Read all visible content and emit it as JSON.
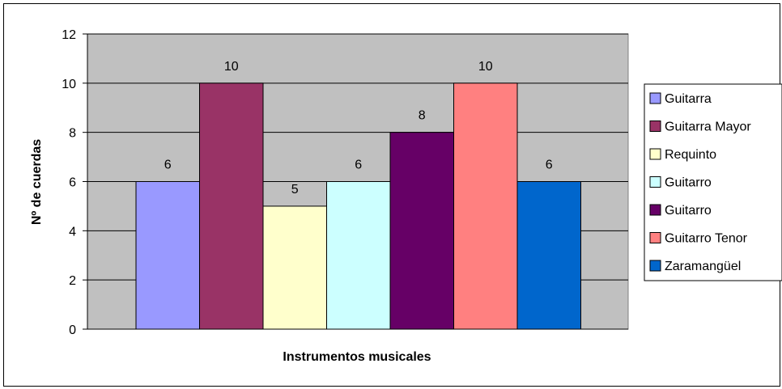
{
  "chart_data": {
    "type": "bar",
    "categories": [
      "Guitarra",
      "Guitarra Mayor",
      "Requinto",
      "Guitarro",
      "Guitarro",
      "Guitarro Tenor",
      "Zaramangüel"
    ],
    "values": [
      6,
      10,
      5,
      6,
      8,
      10,
      6
    ],
    "colors": [
      "#9999ff",
      "#993366",
      "#ffffcc",
      "#ccffff",
      "#660066",
      "#ff8080",
      "#0066cc"
    ],
    "xlabel": "Instrumentos musicales",
    "ylabel": "Nº de cuerdas",
    "ylim": [
      0,
      12
    ],
    "yticks": [
      "0",
      "2",
      "4",
      "6",
      "8",
      "10",
      "12"
    ],
    "grid": true,
    "plot_background": "#c0c0c0",
    "legend_position": "right",
    "data_labels": true
  }
}
